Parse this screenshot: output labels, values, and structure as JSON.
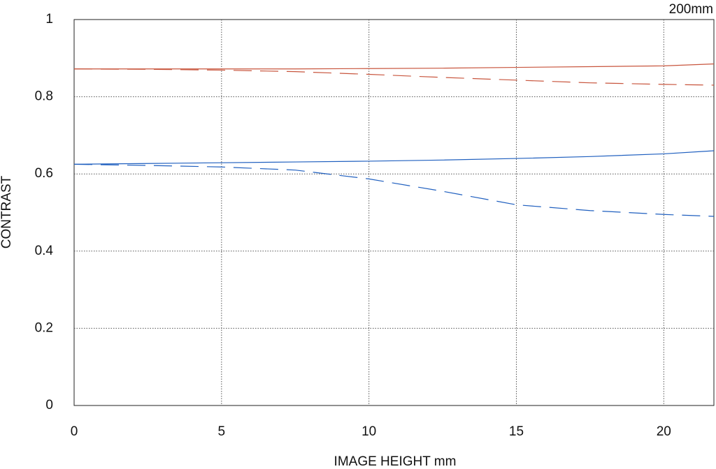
{
  "chart_data": {
    "type": "line",
    "title": "200mm",
    "xlabel": "IMAGE HEIGHT  mm",
    "ylabel": "CONTRAST",
    "x": [
      0,
      2.5,
      5,
      7.5,
      10,
      12.5,
      15,
      17.5,
      20,
      21.7
    ],
    "series": [
      {
        "color": "#c8553d",
        "dashed": false,
        "values": [
          0.872,
          0.872,
          0.872,
          0.872,
          0.873,
          0.874,
          0.876,
          0.878,
          0.88,
          0.885
        ]
      },
      {
        "color": "#c8553d",
        "dashed": true,
        "values": [
          0.872,
          0.871,
          0.869,
          0.865,
          0.858,
          0.85,
          0.843,
          0.836,
          0.832,
          0.83
        ]
      },
      {
        "color": "#1f5fbf",
        "dashed": false,
        "values": [
          0.625,
          0.627,
          0.629,
          0.631,
          0.633,
          0.636,
          0.64,
          0.645,
          0.652,
          0.66
        ]
      },
      {
        "color": "#1f5fbf",
        "dashed": true,
        "values": [
          0.625,
          0.622,
          0.618,
          0.61,
          0.587,
          0.555,
          0.52,
          0.505,
          0.495,
          0.49
        ]
      }
    ],
    "xlim": [
      0,
      21.7
    ],
    "ylim": [
      0,
      1
    ],
    "xticks": [
      0,
      5,
      10,
      15,
      20
    ],
    "yticks": [
      0,
      0.2,
      0.4,
      0.6,
      0.8,
      1
    ],
    "grid": true
  }
}
